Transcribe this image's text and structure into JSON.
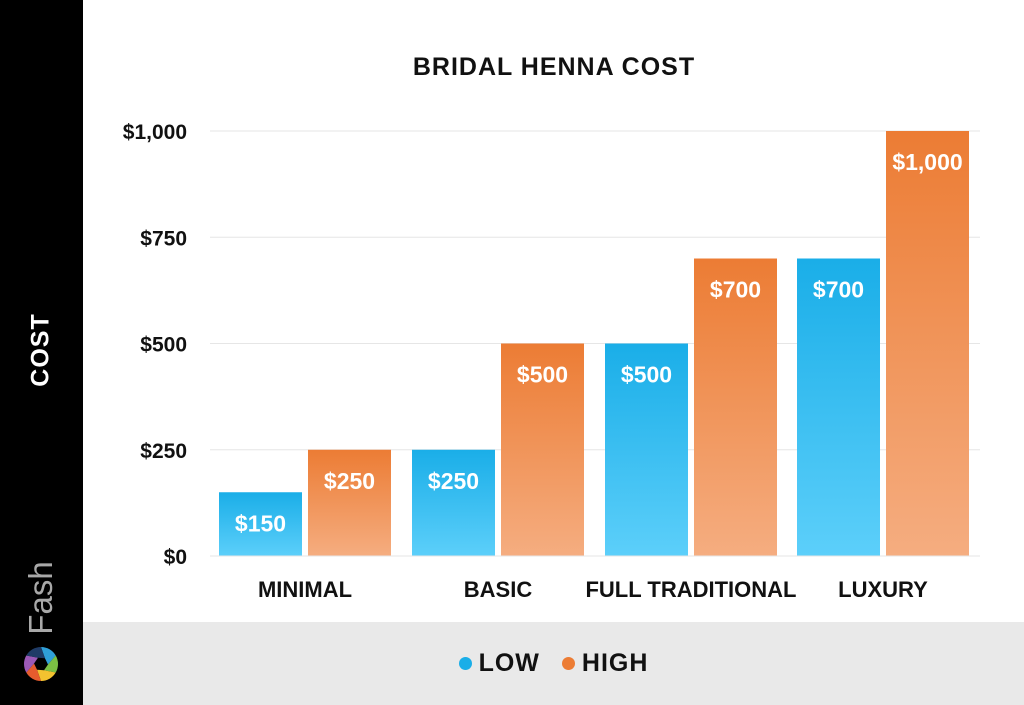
{
  "chart_data": {
    "type": "bar",
    "title": "BRIDAL HENNA COST",
    "ylabel": "COST",
    "xlabel": "",
    "categories": [
      "MINIMAL",
      "BASIC",
      "FULL TRADITIONAL",
      "LUXURY"
    ],
    "series": [
      {
        "name": "LOW",
        "values": [
          150,
          250,
          500,
          700
        ],
        "color": "#1aaee8",
        "color_light": "#5ccffa"
      },
      {
        "name": "HIGH",
        "values": [
          250,
          500,
          700,
          1000
        ],
        "color": "#ec7c34",
        "color_light": "#f5ad80"
      }
    ],
    "data_labels": [
      [
        "$150",
        "$250",
        "$500",
        "$700"
      ],
      [
        "$250",
        "$500",
        "$700",
        "$1,000"
      ]
    ],
    "ylim": [
      0,
      1000
    ],
    "yticks": [
      0,
      250,
      500,
      750,
      1000
    ],
    "ytick_labels": [
      "$0",
      "$250",
      "$500",
      "$750",
      "$1,000"
    ],
    "grid": true,
    "legend_position": "bottom"
  },
  "brand": {
    "name": "Fash",
    "logo_colors": [
      "#2f9fd8",
      "#7bbf44",
      "#f2c230",
      "#e65c2e",
      "#9b59b6",
      "#1f3b66"
    ]
  }
}
